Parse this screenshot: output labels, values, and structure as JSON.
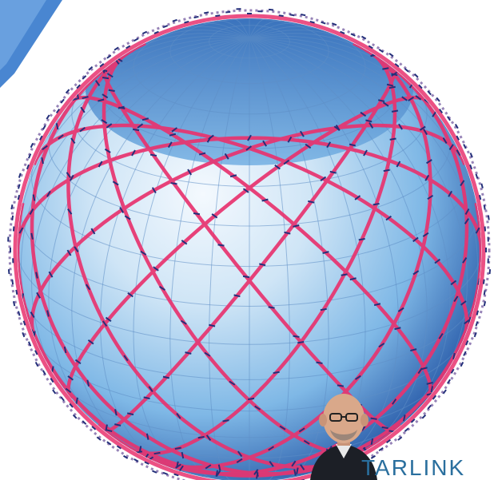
{
  "image": {
    "brand_text": "TARLIN",
    "brand_suffix": "K",
    "colors": {
      "sphere_light": "#e6f2fb",
      "sphere_mid": "#8ec2ea",
      "sphere_dark": "#1f5aa8",
      "orbit_line": "#e8336f",
      "satellite": "#24307a",
      "corner_accent": "#3f7fcf",
      "brand_text": "#2a6f9e",
      "suit": "#1c1f26",
      "skin": "#d9a88a"
    },
    "icons": [
      "satellite-marker-icon"
    ]
  }
}
